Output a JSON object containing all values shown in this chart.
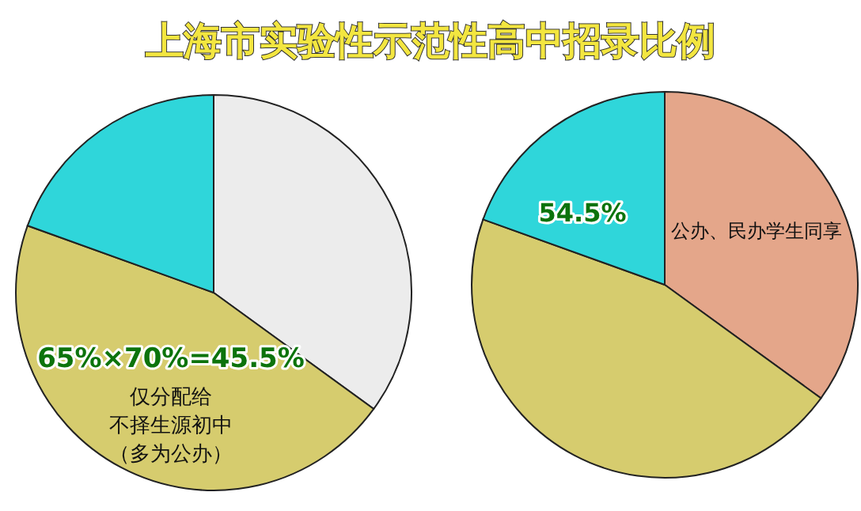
{
  "chart_data": [
    {
      "type": "pie",
      "title": "上海市实验性示范性高中招录比例",
      "categories": [
        null,
        null,
        null
      ],
      "values": [
        35,
        45.5,
        19.5
      ],
      "colors": [
        "#ececec",
        "#d6cc6e",
        "#2fd6da"
      ],
      "annotations": [
        "65%×70%=45.5%",
        "仅分配给",
        "不择生源初中",
        "（多为公办）"
      ]
    },
    {
      "type": "pie",
      "categories": [
        null,
        null,
        null
      ],
      "values": [
        35,
        45.5,
        19.5
      ],
      "colors": [
        "#e4a68a",
        "#d6cc6e",
        "#2fd6da"
      ],
      "annotations": [
        "54.5%",
        "公办、民办学生同享"
      ]
    }
  ]
}
